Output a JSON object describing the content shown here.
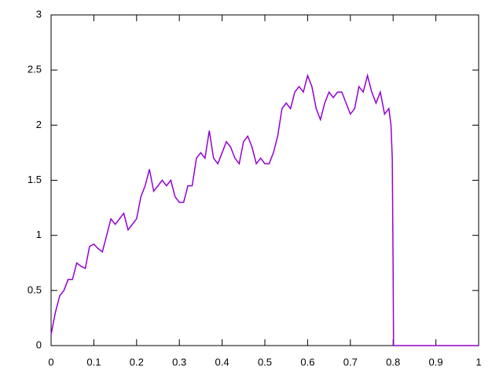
{
  "chart_data": {
    "type": "line",
    "x": [
      0,
      0.01,
      0.02,
      0.03,
      0.04,
      0.05,
      0.06,
      0.07,
      0.08,
      0.09,
      0.1,
      0.11,
      0.12,
      0.13,
      0.14,
      0.15,
      0.16,
      0.17,
      0.18,
      0.19,
      0.2,
      0.21,
      0.22,
      0.23,
      0.24,
      0.25,
      0.26,
      0.27,
      0.28,
      0.29,
      0.3,
      0.31,
      0.32,
      0.33,
      0.34,
      0.35,
      0.36,
      0.37,
      0.38,
      0.39,
      0.4,
      0.41,
      0.42,
      0.43,
      0.44,
      0.45,
      0.46,
      0.47,
      0.48,
      0.49,
      0.5,
      0.51,
      0.52,
      0.53,
      0.54,
      0.55,
      0.56,
      0.57,
      0.58,
      0.59,
      0.6,
      0.61,
      0.62,
      0.63,
      0.64,
      0.65,
      0.66,
      0.67,
      0.68,
      0.69,
      0.7,
      0.71,
      0.72,
      0.73,
      0.74,
      0.75,
      0.76,
      0.77,
      0.78,
      0.79,
      0.795,
      0.798,
      0.8,
      0.801,
      1
    ],
    "series": [
      {
        "color": "#9400d3",
        "values": [
          0.1,
          0.3,
          0.45,
          0.5,
          0.6,
          0.6,
          0.75,
          0.72,
          0.7,
          0.9,
          0.92,
          0.88,
          0.85,
          1.0,
          1.15,
          1.1,
          1.15,
          1.2,
          1.05,
          1.1,
          1.15,
          1.35,
          1.45,
          1.6,
          1.4,
          1.45,
          1.5,
          1.45,
          1.5,
          1.35,
          1.3,
          1.3,
          1.45,
          1.45,
          1.7,
          1.75,
          1.7,
          1.95,
          1.7,
          1.65,
          1.75,
          1.85,
          1.8,
          1.7,
          1.65,
          1.85,
          1.9,
          1.8,
          1.65,
          1.7,
          1.65,
          1.65,
          1.75,
          1.9,
          2.15,
          2.2,
          2.15,
          2.3,
          2.35,
          2.3,
          2.45,
          2.35,
          2.15,
          2.05,
          2.2,
          2.3,
          2.25,
          2.3,
          2.3,
          2.2,
          2.1,
          2.15,
          2.35,
          2.3,
          2.45,
          2.3,
          2.2,
          2.3,
          2.1,
          2.15,
          2.0,
          1.7,
          0.7,
          0,
          0
        ]
      }
    ],
    "xlim": [
      0,
      1
    ],
    "xticks": [
      0,
      0.1,
      0.2,
      0.3,
      0.4,
      0.5,
      0.6,
      0.7,
      0.8,
      0.9,
      1
    ],
    "ylim": [
      0,
      3
    ],
    "yticks": [
      0,
      0.5,
      1,
      1.5,
      2,
      2.5,
      3
    ]
  }
}
